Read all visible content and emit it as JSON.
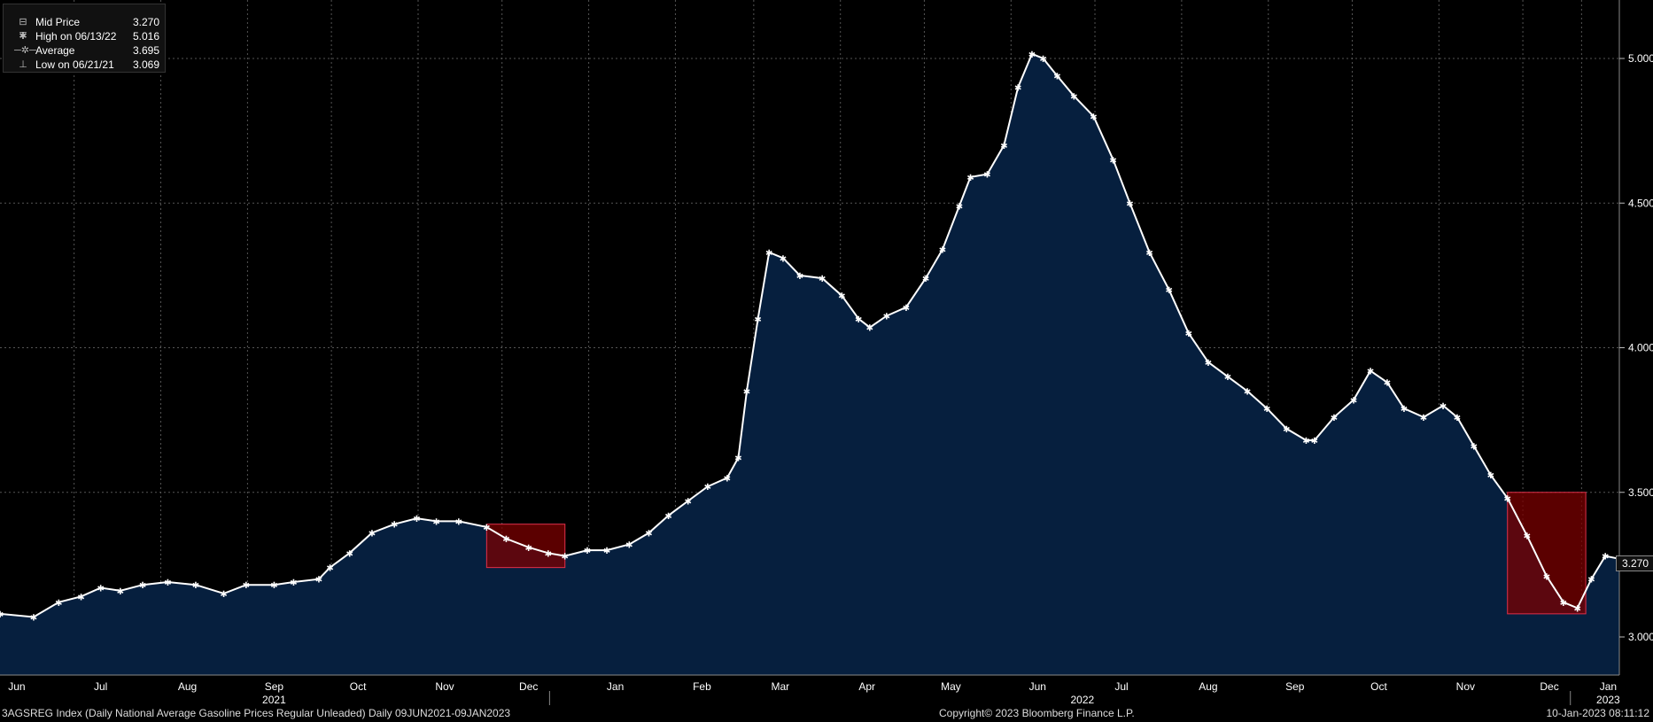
{
  "legend": {
    "rows": [
      {
        "icon": "asterisk-marker-icon",
        "label": "Mid Price",
        "value": "3.270"
      },
      {
        "icon": "high-marker-icon",
        "label": "High on 06/13/22",
        "value": "5.016"
      },
      {
        "icon": "average-marker-icon",
        "label": "Average",
        "value": "3.695"
      },
      {
        "icon": "low-marker-icon",
        "label": "Low on 06/21/21",
        "value": "3.069"
      }
    ]
  },
  "footer": {
    "left": "3AGSREG Index (Daily National Average Gasoline Prices Regular Unleaded)  Daily 09JUN2021-09JAN2023",
    "center": "Copyright© 2023 Bloomberg Finance L.P.",
    "right": "10-Jan-2023 08:11:12"
  },
  "last_value_tag": "3.270",
  "colors": {
    "background": "#000000",
    "area_fill": "#061f3e",
    "line": "#ffffff",
    "highlight_fill": "#7a0000",
    "highlight_stroke": "#e0304a",
    "grid": "#555555",
    "axis_text": "#ffffff"
  },
  "chart_data": {
    "type": "area",
    "title": "",
    "xlabel": "",
    "ylabel": "",
    "ylim": [
      2.9,
      5.2
    ],
    "x_range": [
      "2021-06-09",
      "2023-01-09"
    ],
    "y_ticks": [
      {
        "value": 3.0,
        "label": "3.000"
      },
      {
        "value": 3.5,
        "label": "3.500"
      },
      {
        "value": 4.0,
        "label": "4.000"
      },
      {
        "value": 4.5,
        "label": "4.500"
      },
      {
        "value": 5.0,
        "label": "5.000"
      }
    ],
    "x_month_ticks": [
      {
        "date": "2021-06-15",
        "label": "Jun"
      },
      {
        "date": "2021-07-15",
        "label": "Jul"
      },
      {
        "date": "2021-08-15",
        "label": "Aug"
      },
      {
        "date": "2021-09-15",
        "label": "Sep"
      },
      {
        "date": "2021-10-15",
        "label": "Oct"
      },
      {
        "date": "2021-11-15",
        "label": "Nov"
      },
      {
        "date": "2021-12-15",
        "label": "Dec"
      },
      {
        "date": "2022-01-15",
        "label": "Jan"
      },
      {
        "date": "2022-02-15",
        "label": "Feb"
      },
      {
        "date": "2022-03-15",
        "label": "Mar"
      },
      {
        "date": "2022-04-15",
        "label": "Apr"
      },
      {
        "date": "2022-05-15",
        "label": "May"
      },
      {
        "date": "2022-06-15",
        "label": "Jun"
      },
      {
        "date": "2022-07-15",
        "label": "Jul"
      },
      {
        "date": "2022-08-15",
        "label": "Aug"
      },
      {
        "date": "2022-09-15",
        "label": "Sep"
      },
      {
        "date": "2022-10-15",
        "label": "Oct"
      },
      {
        "date": "2022-11-15",
        "label": "Nov"
      },
      {
        "date": "2022-12-15",
        "label": "Dec"
      },
      {
        "date": "2023-01-05",
        "label": "Jan"
      }
    ],
    "year_labels": [
      {
        "date": "2021-09-15",
        "label": "2021"
      },
      {
        "date": "2022-07-01",
        "label": "2022"
      },
      {
        "date": "2023-01-05",
        "label": "2023"
      }
    ],
    "year_boundaries": [
      "2022-01-01",
      "2023-01-01"
    ],
    "highlight_regions": [
      {
        "x0": "2021-11-30",
        "x1": "2021-12-28",
        "y0": 3.24,
        "y1": 3.39
      },
      {
        "x0": "2022-11-30",
        "x1": "2022-12-28",
        "y0": 3.08,
        "y1": 3.5
      }
    ],
    "series": [
      {
        "name": "Mid Price",
        "points": [
          [
            "2021-06-09",
            3.08
          ],
          [
            "2021-06-21",
            3.069
          ],
          [
            "2021-06-30",
            3.12
          ],
          [
            "2021-07-08",
            3.14
          ],
          [
            "2021-07-15",
            3.17
          ],
          [
            "2021-07-22",
            3.16
          ],
          [
            "2021-07-30",
            3.18
          ],
          [
            "2021-08-08",
            3.19
          ],
          [
            "2021-08-18",
            3.18
          ],
          [
            "2021-08-28",
            3.15
          ],
          [
            "2021-09-05",
            3.18
          ],
          [
            "2021-09-15",
            3.18
          ],
          [
            "2021-09-22",
            3.19
          ],
          [
            "2021-10-01",
            3.2
          ],
          [
            "2021-10-05",
            3.24
          ],
          [
            "2021-10-12",
            3.29
          ],
          [
            "2021-10-20",
            3.36
          ],
          [
            "2021-10-28",
            3.39
          ],
          [
            "2021-11-05",
            3.41
          ],
          [
            "2021-11-12",
            3.4
          ],
          [
            "2021-11-20",
            3.4
          ],
          [
            "2021-11-30",
            3.38
          ],
          [
            "2021-12-07",
            3.34
          ],
          [
            "2021-12-15",
            3.31
          ],
          [
            "2021-12-22",
            3.29
          ],
          [
            "2021-12-28",
            3.28
          ],
          [
            "2022-01-05",
            3.3
          ],
          [
            "2022-01-12",
            3.3
          ],
          [
            "2022-01-20",
            3.32
          ],
          [
            "2022-01-27",
            3.36
          ],
          [
            "2022-02-03",
            3.42
          ],
          [
            "2022-02-10",
            3.47
          ],
          [
            "2022-02-17",
            3.52
          ],
          [
            "2022-02-24",
            3.55
          ],
          [
            "2022-02-28",
            3.62
          ],
          [
            "2022-03-03",
            3.85
          ],
          [
            "2022-03-07",
            4.1
          ],
          [
            "2022-03-11",
            4.33
          ],
          [
            "2022-03-16",
            4.31
          ],
          [
            "2022-03-22",
            4.25
          ],
          [
            "2022-03-30",
            4.24
          ],
          [
            "2022-04-06",
            4.18
          ],
          [
            "2022-04-12",
            4.1
          ],
          [
            "2022-04-16",
            4.07
          ],
          [
            "2022-04-22",
            4.11
          ],
          [
            "2022-04-29",
            4.14
          ],
          [
            "2022-05-06",
            4.24
          ],
          [
            "2022-05-12",
            4.34
          ],
          [
            "2022-05-18",
            4.49
          ],
          [
            "2022-05-22",
            4.59
          ],
          [
            "2022-05-28",
            4.6
          ],
          [
            "2022-06-03",
            4.7
          ],
          [
            "2022-06-08",
            4.9
          ],
          [
            "2022-06-13",
            5.016
          ],
          [
            "2022-06-17",
            5.0
          ],
          [
            "2022-06-22",
            4.94
          ],
          [
            "2022-06-28",
            4.87
          ],
          [
            "2022-07-05",
            4.8
          ],
          [
            "2022-07-12",
            4.65
          ],
          [
            "2022-07-18",
            4.5
          ],
          [
            "2022-07-25",
            4.33
          ],
          [
            "2022-08-01",
            4.2
          ],
          [
            "2022-08-08",
            4.05
          ],
          [
            "2022-08-15",
            3.95
          ],
          [
            "2022-08-22",
            3.9
          ],
          [
            "2022-08-29",
            3.85
          ],
          [
            "2022-09-05",
            3.79
          ],
          [
            "2022-09-12",
            3.72
          ],
          [
            "2022-09-19",
            3.68
          ],
          [
            "2022-09-22",
            3.68
          ],
          [
            "2022-09-29",
            3.76
          ],
          [
            "2022-10-06",
            3.82
          ],
          [
            "2022-10-12",
            3.92
          ],
          [
            "2022-10-18",
            3.88
          ],
          [
            "2022-10-24",
            3.79
          ],
          [
            "2022-10-31",
            3.76
          ],
          [
            "2022-11-07",
            3.8
          ],
          [
            "2022-11-12",
            3.76
          ],
          [
            "2022-11-18",
            3.66
          ],
          [
            "2022-11-24",
            3.56
          ],
          [
            "2022-11-30",
            3.48
          ],
          [
            "2022-12-07",
            3.35
          ],
          [
            "2022-12-14",
            3.21
          ],
          [
            "2022-12-20",
            3.12
          ],
          [
            "2022-12-25",
            3.1
          ],
          [
            "2022-12-30",
            3.2
          ],
          [
            "2023-01-04",
            3.28
          ],
          [
            "2023-01-09",
            3.27
          ]
        ]
      }
    ]
  }
}
